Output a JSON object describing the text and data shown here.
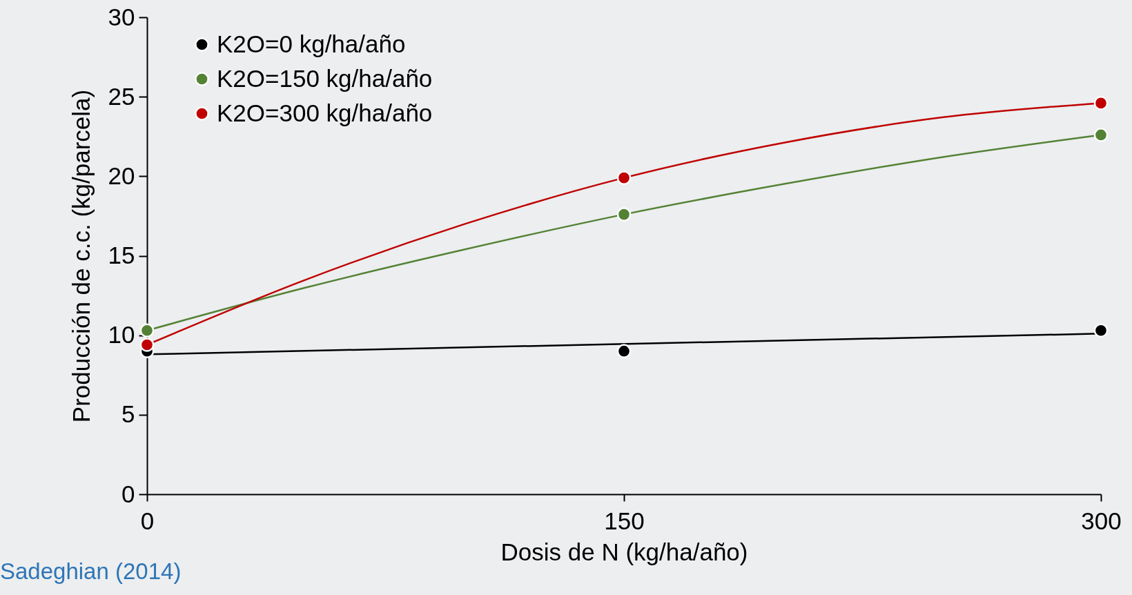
{
  "chart_data": {
    "type": "scatter",
    "xlabel": "Dosis de N (kg/ha/año)",
    "ylabel": "Producción de c.c. (kg/parcela)",
    "x": [
      0,
      150,
      300
    ],
    "xlim": [
      0,
      300
    ],
    "xticks": [
      0,
      150,
      300
    ],
    "ylim": [
      0,
      30
    ],
    "yticks": [
      0,
      5,
      10,
      15,
      20,
      25,
      30
    ],
    "grid": false,
    "legend": "top left",
    "marker": "circle",
    "line_style": "solid",
    "annotations": [
      "Sadeghian (2014)"
    ],
    "series": [
      {
        "type": "line",
        "marker": "none",
        "color": "#000000",
        "x": [
          0,
          300
        ],
        "values": [
          8.8,
          10.1
        ]
      },
      {
        "type": "line",
        "marker": "none",
        "color": "#548235",
        "x": [
          0,
          50,
          100,
          150,
          200,
          250,
          300
        ],
        "values": [
          10.3,
          13.0,
          15.4,
          17.6,
          19.5,
          21.2,
          22.6
        ]
      },
      {
        "type": "line",
        "marker": "none",
        "color": "#c00000",
        "x": [
          0,
          50,
          100,
          150,
          200,
          250,
          300
        ],
        "values": [
          9.4,
          13.5,
          17.0,
          19.9,
          22.1,
          23.7,
          24.6
        ]
      },
      {
        "name": "K2O=0 kg/ha/año",
        "color": "#000000",
        "values": [
          9.0,
          9.0,
          10.3
        ]
      },
      {
        "name": "K2O=150 kg/ha/año",
        "color": "#548235",
        "values": [
          10.3,
          17.6,
          22.6
        ]
      },
      {
        "name": "K2O=300 kg/ha/año",
        "color": "#c00000",
        "values": [
          9.4,
          19.9,
          24.6
        ]
      }
    ]
  }
}
